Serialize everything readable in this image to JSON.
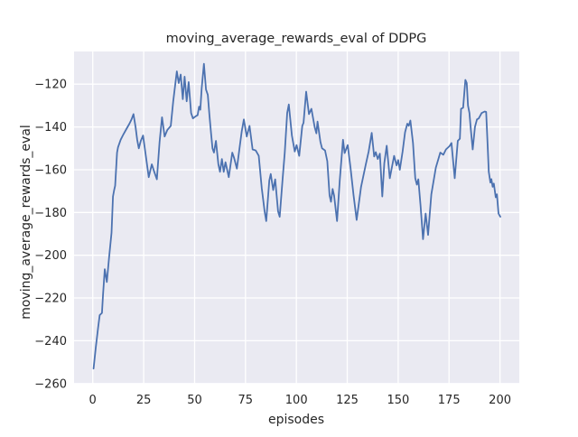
{
  "chart_data": {
    "type": "line",
    "title": "moving_average_rewards_eval of DDPG",
    "xlabel": "episodes",
    "ylabel": "moving_average_rewards_eval",
    "legend": "none",
    "grid": true,
    "style": "seaborn-darkgrid",
    "colors": {
      "line": "#4C72B0",
      "plot_background": "#EAEAF2",
      "gridline": "#FFFFFF",
      "text": "#262626",
      "figure_background": "#FFFFFF"
    },
    "xlim": [
      -9.2,
      209.5
    ],
    "ylim": [
      -260.1,
      -104.7
    ],
    "x_ticks": [
      0,
      25,
      50,
      75,
      100,
      125,
      150,
      175,
      200
    ],
    "x_tick_labels": [
      "0",
      "25",
      "50",
      "75",
      "100",
      "125",
      "150",
      "175",
      "200"
    ],
    "y_ticks": [
      -260,
      -240,
      -220,
      -200,
      -180,
      -160,
      -140,
      -120
    ],
    "y_tick_labels": [
      "−260",
      "−240",
      "−220",
      "−200",
      "−180",
      "−160",
      "−140",
      "−120"
    ],
    "series": [
      {
        "name": "moving_average_rewards_eval",
        "points": [
          [
            0.4,
            -253
          ],
          [
            1.5,
            -243
          ],
          [
            2.6,
            -234
          ],
          [
            3.4,
            -228
          ],
          [
            4.5,
            -227
          ],
          [
            5.0,
            -219
          ],
          [
            5.9,
            -206.5
          ],
          [
            6.9,
            -212.5
          ],
          [
            8.0,
            -201
          ],
          [
            9.2,
            -189.5
          ],
          [
            9.9,
            -172.5
          ],
          [
            10.5,
            -169.5
          ],
          [
            11.0,
            -167.5
          ],
          [
            11.9,
            -152
          ],
          [
            12.4,
            -149.5
          ],
          [
            13.7,
            -146
          ],
          [
            15.0,
            -143.5
          ],
          [
            16.5,
            -141
          ],
          [
            18.0,
            -138.5
          ],
          [
            19.0,
            -136.5
          ],
          [
            20.0,
            -134
          ],
          [
            21.0,
            -140
          ],
          [
            21.8,
            -146
          ],
          [
            22.6,
            -150
          ],
          [
            23.6,
            -146.5
          ],
          [
            24.7,
            -144
          ],
          [
            26.0,
            -153
          ],
          [
            27.5,
            -163.5
          ],
          [
            29.0,
            -157.5
          ],
          [
            30.2,
            -161
          ],
          [
            31.5,
            -164.5
          ],
          [
            32.8,
            -147
          ],
          [
            34.0,
            -135.5
          ],
          [
            35.3,
            -144.5
          ],
          [
            36.6,
            -141.5
          ],
          [
            38.3,
            -139.5
          ],
          [
            39.5,
            -128
          ],
          [
            41.3,
            -114
          ],
          [
            42.2,
            -119.5
          ],
          [
            43.2,
            -115.5
          ],
          [
            44.2,
            -127
          ],
          [
            45.1,
            -116.5
          ],
          [
            46.1,
            -128
          ],
          [
            47.1,
            -119
          ],
          [
            48.3,
            -133.5
          ],
          [
            49.2,
            -136
          ],
          [
            50.5,
            -135
          ],
          [
            51.5,
            -134.5
          ],
          [
            52.2,
            -130.5
          ],
          [
            52.8,
            -132
          ],
          [
            53.5,
            -122
          ],
          [
            54.6,
            -110.5
          ],
          [
            55.6,
            -122.5
          ],
          [
            56.5,
            -125
          ],
          [
            57.3,
            -134.5
          ],
          [
            58.1,
            -143
          ],
          [
            58.8,
            -150
          ],
          [
            59.5,
            -152
          ],
          [
            60.5,
            -146.5
          ],
          [
            61.7,
            -157.5
          ],
          [
            62.5,
            -161
          ],
          [
            63.4,
            -155
          ],
          [
            64.3,
            -161
          ],
          [
            65.2,
            -156.5
          ],
          [
            66.8,
            -163.5
          ],
          [
            68.5,
            -152
          ],
          [
            69.4,
            -154.5
          ],
          [
            70.8,
            -159.5
          ],
          [
            72.2,
            -149
          ],
          [
            73.2,
            -142
          ],
          [
            74.2,
            -136.5
          ],
          [
            75.6,
            -144.5
          ],
          [
            77.0,
            -139.5
          ],
          [
            78.5,
            -150.5
          ],
          [
            80.0,
            -151
          ],
          [
            81.5,
            -153.5
          ],
          [
            83.0,
            -168.5
          ],
          [
            84.4,
            -179.5
          ],
          [
            85.2,
            -184
          ],
          [
            86.7,
            -165
          ],
          [
            87.4,
            -162
          ],
          [
            88.6,
            -169.5
          ],
          [
            89.6,
            -164.5
          ],
          [
            91.0,
            -179.5
          ],
          [
            91.8,
            -182
          ],
          [
            93.2,
            -165
          ],
          [
            94.3,
            -152
          ],
          [
            95.5,
            -133.5
          ],
          [
            96.3,
            -129.5
          ],
          [
            97.8,
            -144
          ],
          [
            99.2,
            -151.5
          ],
          [
            100.1,
            -148.5
          ],
          [
            101.4,
            -153.5
          ],
          [
            102.9,
            -139.5
          ],
          [
            103.5,
            -138
          ],
          [
            104.8,
            -123.5
          ],
          [
            106.2,
            -134
          ],
          [
            107.4,
            -131.5
          ],
          [
            109.0,
            -140
          ],
          [
            109.8,
            -143
          ],
          [
            110.4,
            -137.5
          ],
          [
            111.8,
            -147
          ],
          [
            112.6,
            -150
          ],
          [
            114.1,
            -151
          ],
          [
            115.2,
            -156
          ],
          [
            116.3,
            -172
          ],
          [
            117.0,
            -175
          ],
          [
            117.8,
            -169
          ],
          [
            118.5,
            -172
          ],
          [
            120.0,
            -184
          ],
          [
            121.3,
            -165
          ],
          [
            122.9,
            -146
          ],
          [
            123.7,
            -152.2
          ],
          [
            125.2,
            -148.5
          ],
          [
            126.6,
            -159
          ],
          [
            128.1,
            -172
          ],
          [
            129.6,
            -183.5
          ],
          [
            131.8,
            -168
          ],
          [
            134.0,
            -158
          ],
          [
            135.5,
            -151.5
          ],
          [
            137.0,
            -142.8
          ],
          [
            138.2,
            -153.8
          ],
          [
            139.0,
            -151.8
          ],
          [
            140.0,
            -155
          ],
          [
            141.0,
            -152.5
          ],
          [
            142.2,
            -172.5
          ],
          [
            143.2,
            -157
          ],
          [
            144.4,
            -148.8
          ],
          [
            145.9,
            -164
          ],
          [
            147.0,
            -158.5
          ],
          [
            148.0,
            -153.5
          ],
          [
            149.2,
            -158
          ],
          [
            150.0,
            -155.5
          ],
          [
            150.8,
            -160
          ],
          [
            152.2,
            -151.5
          ],
          [
            153.4,
            -142.5
          ],
          [
            154.5,
            -138.5
          ],
          [
            155.2,
            -139.5
          ],
          [
            156.0,
            -137
          ],
          [
            157.3,
            -147.5
          ],
          [
            158.4,
            -164
          ],
          [
            159.2,
            -167
          ],
          [
            159.9,
            -164.5
          ],
          [
            161.0,
            -177
          ],
          [
            162.2,
            -192.5
          ],
          [
            163.5,
            -180.5
          ],
          [
            164.7,
            -190.5
          ],
          [
            166.3,
            -171.5
          ],
          [
            168.5,
            -159
          ],
          [
            170.7,
            -152
          ],
          [
            172.2,
            -153
          ],
          [
            173.5,
            -150.5
          ],
          [
            175.2,
            -149
          ],
          [
            176.2,
            -147.5
          ],
          [
            177.8,
            -164
          ],
          [
            179.3,
            -146.5
          ],
          [
            180.3,
            -145.5
          ],
          [
            180.9,
            -131.5
          ],
          [
            181.9,
            -131
          ],
          [
            183.0,
            -118
          ],
          [
            183.7,
            -119.5
          ],
          [
            184.3,
            -130
          ],
          [
            185.0,
            -133.5
          ],
          [
            185.7,
            -141
          ],
          [
            186.6,
            -150.5
          ],
          [
            187.7,
            -140
          ],
          [
            188.7,
            -136.5
          ],
          [
            189.6,
            -136
          ],
          [
            191.0,
            -133.5
          ],
          [
            192.5,
            -132.8
          ],
          [
            193.2,
            -133
          ],
          [
            194.0,
            -150
          ],
          [
            194.5,
            -161
          ],
          [
            195.3,
            -166
          ],
          [
            195.8,
            -164.4
          ],
          [
            196.4,
            -168
          ],
          [
            197.0,
            -166.5
          ],
          [
            197.9,
            -172.9
          ],
          [
            198.5,
            -171.5
          ],
          [
            199.3,
            -180.5
          ],
          [
            200.2,
            -182
          ]
        ]
      }
    ]
  }
}
